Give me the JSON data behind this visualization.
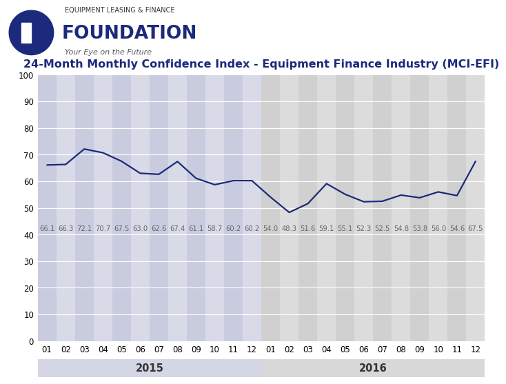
{
  "title": "24-Month Monthly Confidence Index - Equipment Finance Industry (MCI-EFI)",
  "values": [
    66.1,
    66.3,
    72.1,
    70.7,
    67.5,
    63.0,
    62.6,
    67.4,
    61.1,
    58.7,
    60.2,
    60.2,
    54.0,
    48.3,
    51.6,
    59.1,
    55.1,
    52.3,
    52.5,
    54.8,
    53.8,
    56.0,
    54.6,
    67.5
  ],
  "months": [
    "01",
    "02",
    "03",
    "04",
    "05",
    "06",
    "07",
    "08",
    "09",
    "10",
    "11",
    "12",
    "01",
    "02",
    "03",
    "04",
    "05",
    "06",
    "07",
    "08",
    "09",
    "10",
    "11",
    "12"
  ],
  "ylim": [
    0,
    100
  ],
  "yticks": [
    0,
    10,
    20,
    30,
    40,
    50,
    60,
    70,
    80,
    90,
    100
  ],
  "line_color": "#1b2a7b",
  "line_width": 1.6,
  "col_2015_light": "#c9ccdf",
  "col_2015_dark": "#d8dae8",
  "col_2016_light": "#d0d0d0",
  "col_2016_dark": "#dcdcdc",
  "year_band_2015": "#d4d6e5",
  "year_band_2016": "#d8d8d8",
  "label_color": "#666666",
  "title_color": "#1b2a7b",
  "title_fontsize": 11.5,
  "value_fontsize": 7.2,
  "tick_fontsize": 8.5,
  "year_label_fontsize": 10.5,
  "bg_color": "#ffffff"
}
